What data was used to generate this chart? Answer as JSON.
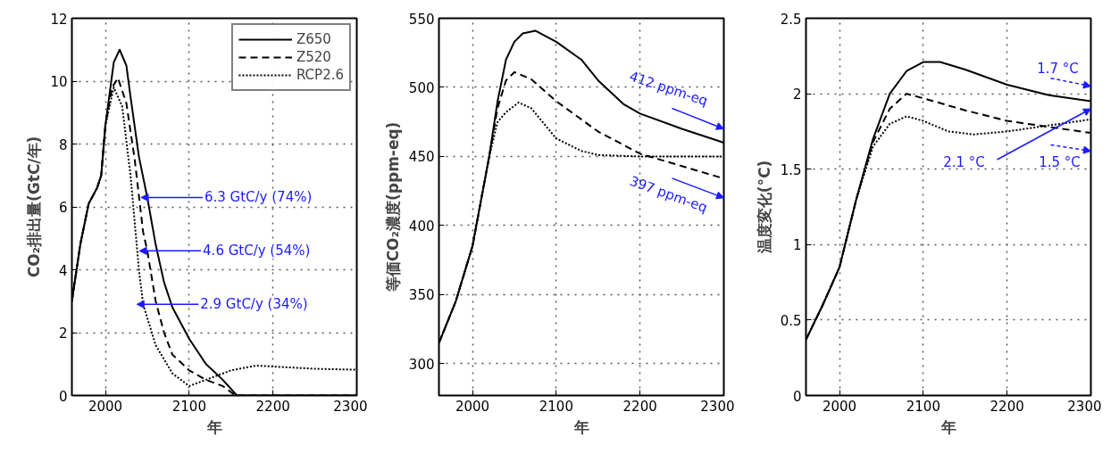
{
  "chart_data": [
    {
      "type": "line",
      "xlabel": "年",
      "ylabel": "CO₂排出量(GtC/年)",
      "xlim": [
        1960,
        2300
      ],
      "ylim": [
        0,
        12
      ],
      "xticks": [
        2000,
        2100,
        2200,
        2300
      ],
      "yticks": [
        0,
        2,
        4,
        6,
        8,
        10,
        12
      ],
      "grid": true,
      "legend": "top right",
      "series": [
        {
          "name": "Z650",
          "color": "#000000",
          "line_style": "solid",
          "x": [
            1960,
            1970,
            1980,
            1990,
            1995,
            2000,
            2010,
            2017,
            2025,
            2030,
            2040,
            2050,
            2060,
            2070,
            2080,
            2100,
            2120,
            2140,
            2157,
            2300
          ],
          "values": [
            3.0,
            4.8,
            6.1,
            6.6,
            7.0,
            8.6,
            10.6,
            11.0,
            10.5,
            9.5,
            7.6,
            6.3,
            4.8,
            3.6,
            2.8,
            1.8,
            1.0,
            0.5,
            0,
            0
          ]
        },
        {
          "name": "Z520",
          "color": "#000000",
          "line_style": "dashed",
          "x": [
            1960,
            1970,
            1980,
            1990,
            1995,
            2000,
            2008,
            2015,
            2025,
            2035,
            2045,
            2050,
            2060,
            2070,
            2080,
            2100,
            2120,
            2140,
            2155,
            2300
          ],
          "values": [
            3.0,
            4.8,
            6.1,
            6.6,
            7.0,
            8.6,
            9.8,
            10.1,
            9.3,
            7.5,
            5.2,
            4.6,
            3.0,
            2.0,
            1.3,
            0.8,
            0.5,
            0.3,
            0,
            0
          ]
        },
        {
          "name": "RCP2.6",
          "color": "#000000",
          "line_style": "dotted",
          "x": [
            1960,
            1970,
            1980,
            1990,
            1995,
            2000,
            2010,
            2020,
            2030,
            2040,
            2045,
            2060,
            2080,
            2100,
            2120,
            2150,
            2180,
            2200,
            2250,
            2300
          ],
          "values": [
            3.0,
            4.8,
            6.1,
            6.6,
            7.0,
            8.6,
            9.8,
            9.2,
            7.0,
            4.0,
            2.9,
            1.6,
            0.7,
            0.3,
            0.5,
            0.8,
            0.95,
            0.92,
            0.85,
            0.82
          ]
        }
      ],
      "annotations": [
        {
          "text": "6.3 GtC/y (74%)",
          "x": 2050,
          "y": 6.3
        },
        {
          "text": "4.6 GtC/y (54%)",
          "x": 2048,
          "y": 4.6
        },
        {
          "text": "2.9 GtC/y (34%)",
          "x": 2045,
          "y": 2.9
        }
      ]
    },
    {
      "type": "line",
      "xlabel": "年",
      "ylabel": "等価CO₂濃度(ppm-eq)",
      "xlim": [
        1960,
        2300
      ],
      "ylim": [
        277,
        550
      ],
      "xticks": [
        2000,
        2100,
        2200,
        2300
      ],
      "yticks": [
        300,
        350,
        400,
        450,
        500,
        550
      ],
      "grid": true,
      "series": [
        {
          "color": "#000000",
          "line_style": "solid",
          "x": [
            1960,
            1980,
            2000,
            2020,
            2030,
            2040,
            2050,
            2060,
            2075,
            2100,
            2130,
            2150,
            2180,
            2200,
            2250,
            2300
          ],
          "values": [
            315,
            345,
            385,
            450,
            490,
            520,
            533,
            539,
            541,
            533,
            520,
            505,
            488,
            481,
            470,
            460
          ]
        },
        {
          "color": "#000000",
          "line_style": "dashed",
          "x": [
            1960,
            1980,
            2000,
            2020,
            2030,
            2040,
            2050,
            2070,
            2100,
            2150,
            2200,
            2250,
            2300
          ],
          "values": [
            315,
            345,
            385,
            450,
            485,
            505,
            511,
            506,
            490,
            468,
            452,
            443,
            434
          ]
        },
        {
          "color": "#000000",
          "line_style": "dotted",
          "x": [
            1960,
            1980,
            2000,
            2020,
            2030,
            2040,
            2055,
            2070,
            2100,
            2130,
            2150,
            2200,
            2300
          ],
          "values": [
            315,
            345,
            385,
            450,
            475,
            482,
            489,
            485,
            463,
            454,
            451,
            450,
            450
          ]
        }
      ],
      "annotations": [
        "412 ppm-eq",
        "397 ppm-eq"
      ]
    },
    {
      "type": "line",
      "xlabel": "年",
      "ylabel": "温度変化(°C)",
      "xlim": [
        1960,
        2300
      ],
      "ylim": [
        0,
        2.5
      ],
      "xticks": [
        2000,
        2100,
        2200,
        2300
      ],
      "yticks": [
        0,
        0.5,
        1,
        1.5,
        2,
        2.5
      ],
      "grid": true,
      "series": [
        {
          "color": "#000000",
          "line_style": "solid",
          "x": [
            1960,
            1980,
            2000,
            2020,
            2040,
            2060,
            2080,
            2100,
            2120,
            2150,
            2200,
            2250,
            2300
          ],
          "values": [
            0.37,
            0.6,
            0.85,
            1.3,
            1.7,
            2.0,
            2.15,
            2.21,
            2.21,
            2.16,
            2.06,
            1.99,
            1.95
          ]
        },
        {
          "color": "#000000",
          "line_style": "dashed",
          "x": [
            1960,
            1980,
            2000,
            2020,
            2040,
            2060,
            2080,
            2100,
            2150,
            2200,
            2250,
            2300
          ],
          "values": [
            0.37,
            0.6,
            0.85,
            1.3,
            1.68,
            1.9,
            2.0,
            1.97,
            1.89,
            1.82,
            1.78,
            1.74
          ]
        },
        {
          "color": "#000000",
          "line_style": "dotted",
          "x": [
            1960,
            1980,
            2000,
            2020,
            2040,
            2060,
            2080,
            2100,
            2130,
            2160,
            2200,
            2250,
            2300
          ],
          "values": [
            0.37,
            0.6,
            0.85,
            1.3,
            1.65,
            1.8,
            1.85,
            1.82,
            1.75,
            1.73,
            1.75,
            1.79,
            1.83
          ]
        }
      ],
      "annotations": [
        "1.7 °C",
        "2.1 °C",
        "1.5 °C"
      ]
    }
  ]
}
